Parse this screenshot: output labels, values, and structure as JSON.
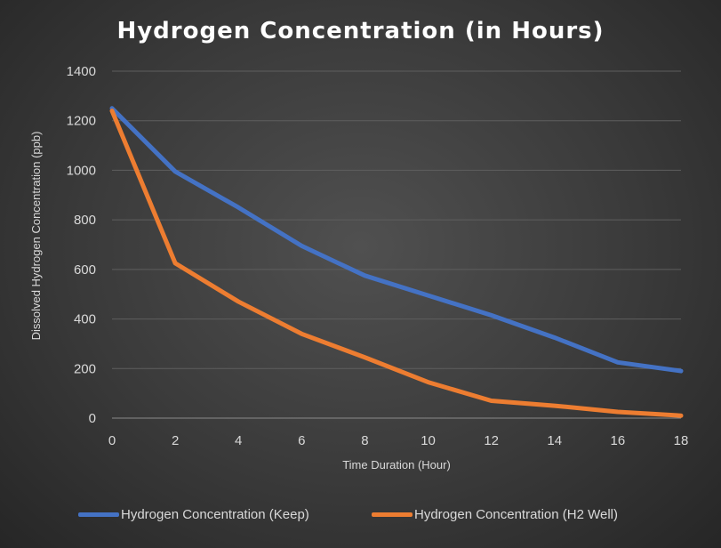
{
  "chart_data": {
    "type": "line",
    "title": "Hydrogen Concentration (in Hours)",
    "xlabel": "Time Duration (Hour)",
    "ylabel": "Dissolved Hydrogen Concentration (ppb)",
    "x": [
      0,
      2,
      4,
      6,
      8,
      10,
      12,
      14,
      16,
      18
    ],
    "xlim": [
      0,
      18
    ],
    "ylim": [
      0,
      1400
    ],
    "xticks": [
      "0",
      "2",
      "4",
      "6",
      "8",
      "10",
      "12",
      "14",
      "16",
      "18"
    ],
    "yticks": [
      "0",
      "200",
      "400",
      "600",
      "800",
      "1000",
      "1200",
      "1400"
    ],
    "grid": true,
    "legend_position": "bottom",
    "series": [
      {
        "name": "Hydrogen Concentration (Keep)",
        "color": "#4472C4",
        "values": [
          1250,
          995,
          850,
          695,
          575,
          495,
          415,
          325,
          225,
          190
        ]
      },
      {
        "name": "Hydrogen Concentration (H2 Well)",
        "color": "#ED7D31",
        "values": [
          1240,
          625,
          470,
          340,
          245,
          145,
          70,
          50,
          25,
          10
        ]
      }
    ]
  }
}
